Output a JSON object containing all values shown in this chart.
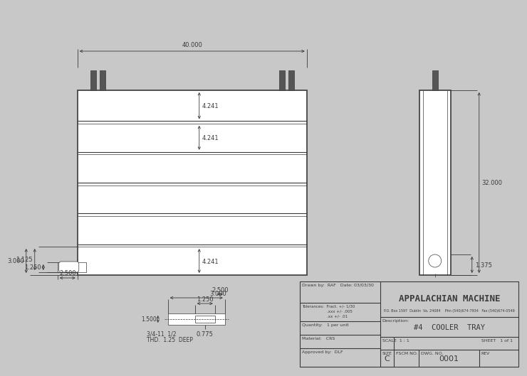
{
  "bg_color": "#c8c8c8",
  "line_color": "#3a3a3a",
  "dim_color": "#3a3a3a",
  "white": "#ffffff",
  "title": "APPALACHIAN MACHINE",
  "subtitle": "#4  COOLER  TRAY",
  "company_info": "P.O. Box 1597  Dublin  Va. 24084    Phn (540)674-7934   Fax (540)674-0549",
  "drawn_by": "RAF",
  "date": "03/03/30",
  "quantity": "1 per unit",
  "material": "CRS",
  "approved_by": "DLF",
  "size": "C",
  "dwg_no": "0001",
  "scale": "1 : 1",
  "sheet": "1 of 1",
  "dim_40": "40.000",
  "dim_32": "32.000",
  "dim_4241": "4.241",
  "dim_1250_side": "1.250",
  "dim_1125": "1.125",
  "dim_3000_side": "3.000",
  "dim_2500": "2.500",
  "dim_1375": "1.375",
  "det_1250": "1.250",
  "det_1500": "1.500",
  "det_0775": "0.775",
  "det_3000": "3.000",
  "det_2500": "2.500",
  "detail_text1": "3/4-11  1/2",
  "detail_text2": "THD.  1.25  DEEP"
}
